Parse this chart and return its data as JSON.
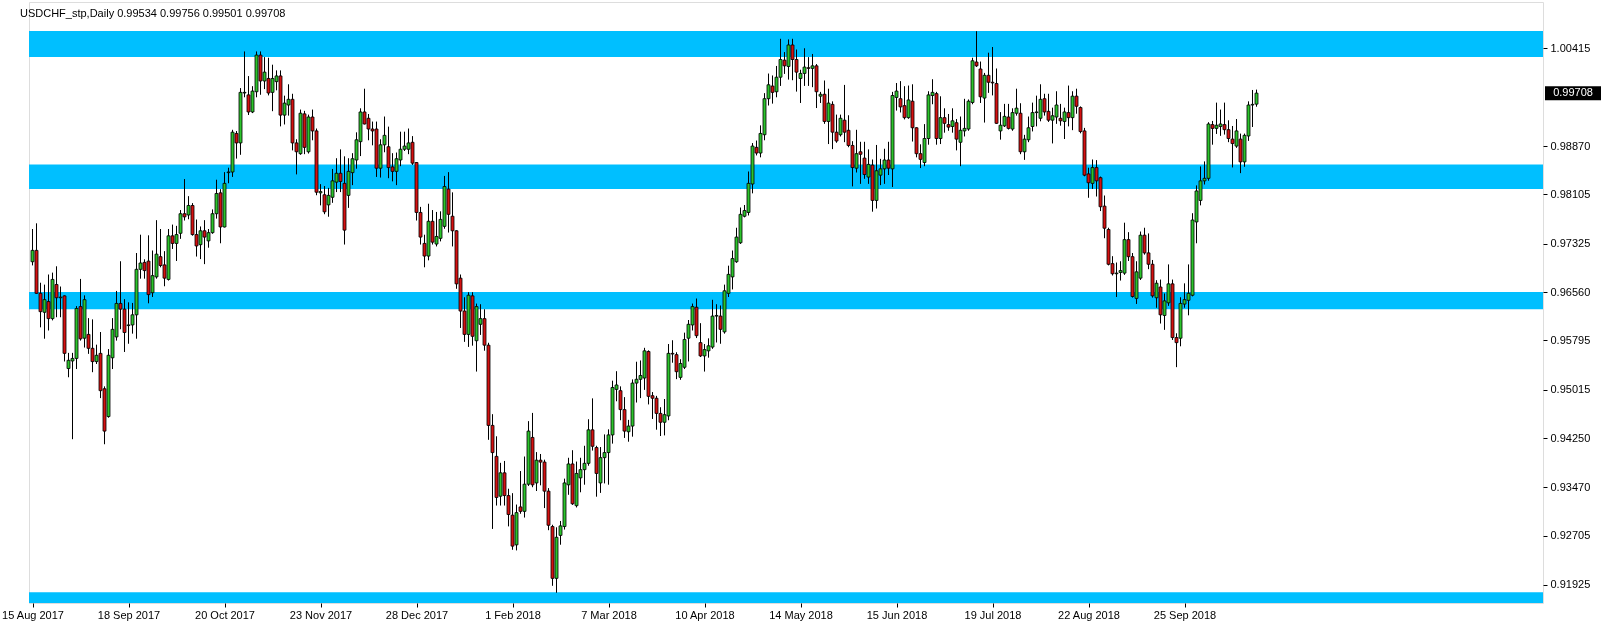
{
  "chart_data": {
    "type": "candlestick",
    "title": "USDCHF_stp,Daily 0.99534 0.99756 0.99501 0.99708",
    "categories": [
      "15 Aug 2017",
      null,
      null,
      null,
      null,
      null,
      null,
      null,
      null,
      null,
      null,
      null,
      null,
      null,
      null,
      null,
      null,
      null,
      null,
      null,
      null,
      null,
      null,
      null,
      "18 Sep 2017",
      null,
      null,
      null,
      null,
      null,
      null,
      null,
      null,
      null,
      null,
      null,
      null,
      null,
      null,
      null,
      null,
      null,
      null,
      null,
      null,
      null,
      null,
      null,
      "20 Oct 2017",
      null,
      null,
      null,
      null,
      null,
      null,
      null,
      null,
      null,
      null,
      null,
      null,
      null,
      null,
      null,
      null,
      null,
      null,
      null,
      null,
      null,
      null,
      null,
      "23 Nov 2017",
      null,
      null,
      null,
      null,
      null,
      null,
      null,
      null,
      null,
      null,
      null,
      null,
      null,
      null,
      null,
      null,
      null,
      null,
      null,
      null,
      null,
      null,
      null,
      "28 Dec 2017",
      null,
      null,
      null,
      null,
      null,
      null,
      null,
      null,
      null,
      null,
      null,
      null,
      null,
      null,
      null,
      null,
      null,
      null,
      null,
      null,
      null,
      null,
      null,
      "1 Feb 2018",
      null,
      null,
      null,
      null,
      null,
      null,
      null,
      null,
      null,
      null,
      null,
      null,
      null,
      null,
      null,
      null,
      null,
      null,
      null,
      null,
      null,
      null,
      null,
      "7 Mar 2018",
      null,
      null,
      null,
      null,
      null,
      null,
      null,
      null,
      null,
      null,
      null,
      null,
      null,
      null,
      null,
      null,
      null,
      null,
      null,
      null,
      null,
      null,
      null,
      "10 Apr 2018",
      null,
      null,
      null,
      null,
      null,
      null,
      null,
      null,
      null,
      null,
      null,
      null,
      null,
      null,
      null,
      null,
      null,
      null,
      null,
      null,
      null,
      null,
      null,
      "14 May 2018",
      null,
      null,
      null,
      null,
      null,
      null,
      null,
      null,
      null,
      null,
      null,
      null,
      null,
      null,
      null,
      null,
      null,
      null,
      null,
      null,
      null,
      null,
      null,
      "15 Jun 2018",
      null,
      null,
      null,
      null,
      null,
      null,
      null,
      null,
      null,
      null,
      null,
      null,
      null,
      null,
      null,
      null,
      null,
      null,
      null,
      null,
      null,
      null,
      null,
      "19 Jul 2018",
      null,
      null,
      null,
      null,
      null,
      null,
      null,
      null,
      null,
      null,
      null,
      null,
      null,
      null,
      null,
      null,
      null,
      null,
      null,
      null,
      null,
      null,
      null,
      "22 Aug 2018",
      null,
      null,
      null,
      null,
      null,
      null,
      null,
      null,
      null,
      null,
      null,
      null,
      null,
      null,
      null,
      null,
      null,
      null,
      null,
      null,
      null,
      null,
      null,
      "25 Sep 2018",
      null,
      null,
      null,
      null,
      null,
      null,
      null,
      null,
      null,
      null,
      null,
      null,
      null,
      null,
      null,
      null,
      null,
      null,
      null,
      null,
      null,
      null,
      null,
      null,
      null,
      null,
      null,
      null,
      null,
      null,
      null,
      null,
      null,
      null,
      null,
      null,
      null,
      null,
      null,
      null,
      null,
      null,
      null,
      null,
      null,
      null,
      null,
      null,
      null,
      null,
      null,
      null,
      null,
      null,
      null,
      null,
      null,
      null,
      null,
      null,
      null,
      null,
      null,
      null,
      null,
      null,
      null,
      null,
      null,
      null,
      null,
      null,
      null,
      null,
      null,
      null,
      null,
      null,
      null,
      null,
      null,
      null,
      null,
      null,
      null,
      null,
      null,
      null,
      null
    ],
    "ohlc": [
      [
        0.9704,
        0.9755,
        0.9699,
        0.9722
      ],
      [
        0.9722,
        0.9764,
        0.9654,
        0.9654
      ],
      [
        0.9654,
        0.967,
        0.9601,
        0.9625
      ],
      [
        0.9624,
        0.9667,
        0.9583,
        0.9644
      ],
      [
        0.9641,
        0.9683,
        0.9596,
        0.9614
      ],
      [
        0.9614,
        0.9686,
        0.9612,
        0.9676
      ],
      [
        0.9668,
        0.9696,
        0.9617,
        0.9647
      ],
      [
        0.9647,
        0.9664,
        0.9617,
        0.9648
      ],
      [
        0.965,
        0.965,
        0.9547,
        0.9559
      ],
      [
        0.9535,
        0.9559,
        0.9522,
        0.9548
      ],
      [
        0.9547,
        0.9559,
        0.9424,
        0.9551
      ],
      [
        0.9551,
        0.9633,
        0.9535,
        0.963
      ],
      [
        0.9633,
        0.9676,
        0.958,
        0.9582
      ],
      [
        0.9583,
        0.965,
        0.9569,
        0.9644
      ],
      [
        0.9589,
        0.9614,
        0.9559,
        0.9567
      ],
      [
        0.9567,
        0.9612,
        0.953,
        0.9546
      ],
      [
        0.9546,
        0.9572,
        0.9543,
        0.9556
      ],
      [
        0.9559,
        0.9592,
        0.9489,
        0.95
      ],
      [
        0.9503,
        0.9506,
        0.9416,
        0.9436
      ],
      [
        0.9459,
        0.9565,
        0.9458,
        0.9556
      ],
      [
        0.9552,
        0.9614,
        0.9535,
        0.9597
      ],
      [
        0.9585,
        0.9657,
        0.958,
        0.9638
      ],
      [
        0.9638,
        0.9704,
        0.9598,
        0.9629
      ],
      [
        0.9629,
        0.9644,
        0.9562,
        0.9592
      ],
      [
        0.9603,
        0.9639,
        0.9575,
        0.9604
      ],
      [
        0.9604,
        0.9638,
        0.9591,
        0.962
      ],
      [
        0.962,
        0.9717,
        0.9583,
        0.9692
      ],
      [
        0.9692,
        0.9746,
        0.9678,
        0.9702
      ],
      [
        0.9703,
        0.9707,
        0.9678,
        0.969
      ],
      [
        0.9705,
        0.9745,
        0.9639,
        0.9652
      ],
      [
        0.9655,
        0.9721,
        0.9649,
        0.9682
      ],
      [
        0.968,
        0.9769,
        0.9678,
        0.9716
      ],
      [
        0.9712,
        0.9755,
        0.9696,
        0.9698
      ],
      [
        0.9699,
        0.972,
        0.9666,
        0.9678
      ],
      [
        0.9676,
        0.9755,
        0.9675,
        0.9745
      ],
      [
        0.9745,
        0.9762,
        0.9725,
        0.9733
      ],
      [
        0.9733,
        0.976,
        0.9706,
        0.9747
      ],
      [
        0.9749,
        0.9785,
        0.9741,
        0.978
      ],
      [
        0.978,
        0.9834,
        0.977,
        0.9775
      ],
      [
        0.9778,
        0.9807,
        0.9772,
        0.9793
      ],
      [
        0.9793,
        0.9796,
        0.9746,
        0.9747
      ],
      [
        0.9747,
        0.977,
        0.9713,
        0.9729
      ],
      [
        0.9731,
        0.9759,
        0.9709,
        0.9753
      ],
      [
        0.9753,
        0.9769,
        0.9701,
        0.9743
      ],
      [
        0.9737,
        0.9755,
        0.9727,
        0.975
      ],
      [
        0.975,
        0.9786,
        0.9749,
        0.978
      ],
      [
        0.978,
        0.9833,
        0.9773,
        0.9812
      ],
      [
        0.9813,
        0.9818,
        0.9734,
        0.9759
      ],
      [
        0.9759,
        0.9845,
        0.9759,
        0.9828
      ],
      [
        0.9845,
        0.9852,
        0.9829,
        0.9846
      ],
      [
        0.9846,
        0.9912,
        0.9839,
        0.9909
      ],
      [
        0.9907,
        0.991,
        0.9868,
        0.9892
      ],
      [
        0.9892,
        0.9978,
        0.9874,
        0.9972
      ],
      [
        0.9971,
        1.0036,
        0.9965,
        0.9972
      ],
      [
        0.9968,
        0.9997,
        0.9937,
        0.9941
      ],
      [
        0.9941,
        0.9981,
        0.994,
        0.9974
      ],
      [
        0.9973,
        1.0036,
        0.9965,
        1.0031
      ],
      [
        1.0031,
        1.0036,
        0.9969,
        0.999
      ],
      [
        0.999,
        1.0027,
        0.9978,
        1.0004
      ],
      [
        0.9994,
        1.0026,
        0.9968,
        0.9971
      ],
      [
        0.9972,
        1.0015,
        0.9943,
        0.9994
      ],
      [
        0.9989,
        1.0006,
        0.9976,
        0.9998
      ],
      [
        0.9998,
        1.0006,
        0.9919,
        0.9936
      ],
      [
        0.9936,
        0.9966,
        0.9922,
        0.9955
      ],
      [
        0.9952,
        0.9984,
        0.9936,
        0.9961
      ],
      [
        0.9961,
        0.9969,
        0.9881,
        0.9892
      ],
      [
        0.9892,
        0.9897,
        0.9843,
        0.9878
      ],
      [
        0.9875,
        0.9944,
        0.9874,
        0.9939
      ],
      [
        0.9938,
        0.9942,
        0.9875,
        0.9885
      ],
      [
        0.9878,
        0.9936,
        0.9876,
        0.9933
      ],
      [
        0.9933,
        0.9944,
        0.9897,
        0.9911
      ],
      [
        0.9911,
        0.9914,
        0.981,
        0.9814
      ],
      [
        0.9813,
        0.9826,
        0.9794,
        0.9815
      ],
      [
        0.981,
        0.9823,
        0.978,
        0.9783
      ],
      [
        0.9794,
        0.982,
        0.9776,
        0.9809
      ],
      [
        0.9806,
        0.985,
        0.9798,
        0.9832
      ],
      [
        0.983,
        0.9867,
        0.9815,
        0.9844
      ],
      [
        0.9844,
        0.9881,
        0.9815,
        0.9831
      ],
      [
        0.9828,
        0.987,
        0.9732,
        0.9754
      ],
      [
        0.9809,
        0.9867,
        0.979,
        0.9847
      ],
      [
        0.9845,
        0.9875,
        0.9826,
        0.9867
      ],
      [
        0.9865,
        0.9908,
        0.9852,
        0.9897
      ],
      [
        0.9894,
        0.9946,
        0.9872,
        0.9941
      ],
      [
        0.9941,
        0.9977,
        0.9922,
        0.9922
      ],
      [
        0.9931,
        0.9937,
        0.9897,
        0.9914
      ],
      [
        0.9914,
        0.9925,
        0.9889,
        0.9911
      ],
      [
        0.9914,
        0.9925,
        0.9839,
        0.9852
      ],
      [
        0.9852,
        0.9897,
        0.9838,
        0.9889
      ],
      [
        0.9889,
        0.9933,
        0.9878,
        0.9904
      ],
      [
        0.9886,
        0.9917,
        0.9837,
        0.9853
      ],
      [
        0.9854,
        0.9875,
        0.9832,
        0.9847
      ],
      [
        0.9847,
        0.9876,
        0.9826,
        0.9867
      ],
      [
        0.9865,
        0.9909,
        0.9856,
        0.9882
      ],
      [
        0.9882,
        0.9909,
        0.988,
        0.9887
      ],
      [
        0.9882,
        0.9914,
        0.9875,
        0.9892
      ],
      [
        0.9893,
        0.9902,
        0.9858,
        0.986
      ],
      [
        0.9861,
        0.9861,
        0.977,
        0.9782
      ],
      [
        0.9782,
        0.979,
        0.9732,
        0.9743
      ],
      [
        0.9733,
        0.9746,
        0.9696,
        0.9713
      ],
      [
        0.9713,
        0.9795,
        0.9707,
        0.9768
      ],
      [
        0.9768,
        0.9785,
        0.9732,
        0.9735
      ],
      [
        0.9732,
        0.9782,
        0.9729,
        0.9744
      ],
      [
        0.9741,
        0.9783,
        0.9737,
        0.9771
      ],
      [
        0.976,
        0.9839,
        0.9757,
        0.9823
      ],
      [
        0.9819,
        0.9845,
        0.9751,
        0.9779
      ],
      [
        0.9776,
        0.9813,
        0.9729,
        0.9753
      ],
      [
        0.9753,
        0.9753,
        0.9662,
        0.9669
      ],
      [
        0.9678,
        0.9683,
        0.96,
        0.9626
      ],
      [
        0.9626,
        0.9647,
        0.9578,
        0.9589
      ],
      [
        0.9589,
        0.9655,
        0.957,
        0.9651
      ],
      [
        0.965,
        0.9655,
        0.9572,
        0.9586
      ],
      [
        0.9579,
        0.9637,
        0.9531,
        0.9633
      ],
      [
        0.9605,
        0.9636,
        0.9589,
        0.9614
      ],
      [
        0.9614,
        0.9628,
        0.9564,
        0.9572
      ],
      [
        0.9572,
        0.9575,
        0.9423,
        0.9445
      ],
      [
        0.9445,
        0.9462,
        0.9282,
        0.9402
      ],
      [
        0.9396,
        0.9427,
        0.9319,
        0.9331
      ],
      [
        0.9333,
        0.9385,
        0.9319,
        0.937
      ],
      [
        0.937,
        0.9388,
        0.9319,
        0.9334
      ],
      [
        0.9334,
        0.9344,
        0.9286,
        0.9304
      ],
      [
        0.9303,
        0.9337,
        0.9249,
        0.9254
      ],
      [
        0.9256,
        0.9319,
        0.9248,
        0.9307
      ],
      [
        0.9316,
        0.9372,
        0.9306,
        0.9309
      ],
      [
        0.9309,
        0.9395,
        0.93,
        0.9352
      ],
      [
        0.9352,
        0.9451,
        0.935,
        0.9436
      ],
      [
        0.9426,
        0.9464,
        0.9348,
        0.9351
      ],
      [
        0.9354,
        0.9402,
        0.9342,
        0.939
      ],
      [
        0.939,
        0.9399,
        0.9351,
        0.9387
      ],
      [
        0.9387,
        0.939,
        0.9315,
        0.9341
      ],
      [
        0.9341,
        0.9345,
        0.928,
        0.9287
      ],
      [
        0.9285,
        0.9287,
        0.9192,
        0.9203
      ],
      [
        0.9203,
        0.9283,
        0.9181,
        0.9268
      ],
      [
        0.9271,
        0.9293,
        0.9257,
        0.9286
      ],
      [
        0.9285,
        0.936,
        0.9281,
        0.9354
      ],
      [
        0.9351,
        0.9393,
        0.9336,
        0.9384
      ],
      [
        0.9384,
        0.9405,
        0.932,
        0.9321
      ],
      [
        0.9318,
        0.9387,
        0.9316,
        0.9369
      ],
      [
        0.9362,
        0.9393,
        0.934,
        0.9375
      ],
      [
        0.9375,
        0.9412,
        0.9352,
        0.9385
      ],
      [
        0.9385,
        0.9454,
        0.9382,
        0.9438
      ],
      [
        0.9438,
        0.9487,
        0.9406,
        0.9412
      ],
      [
        0.941,
        0.9412,
        0.9333,
        0.9369
      ],
      [
        0.9354,
        0.941,
        0.9339,
        0.9394
      ],
      [
        0.9394,
        0.943,
        0.9354,
        0.9402
      ],
      [
        0.9402,
        0.9438,
        0.9352,
        0.943
      ],
      [
        0.943,
        0.9515,
        0.9417,
        0.9505
      ],
      [
        0.9502,
        0.953,
        0.9484,
        0.9509
      ],
      [
        0.95,
        0.9506,
        0.9454,
        0.947
      ],
      [
        0.947,
        0.9489,
        0.9426,
        0.9436
      ],
      [
        0.9435,
        0.9453,
        0.942,
        0.9444
      ],
      [
        0.9444,
        0.9517,
        0.9428,
        0.9512
      ],
      [
        0.9512,
        0.9545,
        0.9482,
        0.9518
      ],
      [
        0.9518,
        0.9547,
        0.9489,
        0.9524
      ],
      [
        0.952,
        0.9567,
        0.9502,
        0.9563
      ],
      [
        0.9562,
        0.9563,
        0.9479,
        0.9491
      ],
      [
        0.9492,
        0.9497,
        0.9456,
        0.9488
      ],
      [
        0.9488,
        0.9491,
        0.9439,
        0.9464
      ],
      [
        0.9464,
        0.9473,
        0.9429,
        0.945
      ],
      [
        0.945,
        0.9486,
        0.943,
        0.9462
      ],
      [
        0.946,
        0.9573,
        0.9454,
        0.9559
      ],
      [
        0.9559,
        0.9579,
        0.9545,
        0.9558
      ],
      [
        0.9557,
        0.956,
        0.9519,
        0.953
      ],
      [
        0.9521,
        0.9549,
        0.9518,
        0.9543
      ],
      [
        0.9537,
        0.9591,
        0.9535,
        0.9581
      ],
      [
        0.9583,
        0.9611,
        0.9547,
        0.9605
      ],
      [
        0.9604,
        0.9637,
        0.9596,
        0.9633
      ],
      [
        0.9632,
        0.9645,
        0.9584,
        0.9587
      ],
      [
        0.9576,
        0.9606,
        0.9554,
        0.9555
      ],
      [
        0.9555,
        0.9573,
        0.9531,
        0.9565
      ],
      [
        0.9563,
        0.9582,
        0.9553,
        0.9571
      ],
      [
        0.9569,
        0.9643,
        0.9567,
        0.9618
      ],
      [
        0.9618,
        0.9636,
        0.9577,
        0.9619
      ],
      [
        0.9618,
        0.9634,
        0.9575,
        0.9597
      ],
      [
        0.9593,
        0.9667,
        0.9591,
        0.9658
      ],
      [
        0.9654,
        0.9697,
        0.9649,
        0.9684
      ],
      [
        0.968,
        0.9721,
        0.9661,
        0.9709
      ],
      [
        0.9704,
        0.9757,
        0.9703,
        0.9743
      ],
      [
        0.9734,
        0.9789,
        0.9733,
        0.9779
      ],
      [
        0.9776,
        0.9793,
        0.9775,
        0.9785
      ],
      [
        0.9782,
        0.9846,
        0.9778,
        0.9828
      ],
      [
        0.9827,
        0.9891,
        0.9813,
        0.9887
      ],
      [
        0.9885,
        0.9895,
        0.9873,
        0.9876
      ],
      [
        0.9876,
        0.9919,
        0.987,
        0.9907
      ],
      [
        0.9905,
        0.997,
        0.9897,
        0.9962
      ],
      [
        0.9962,
        1.0001,
        0.9952,
        0.9984
      ],
      [
        0.9982,
        0.9998,
        0.9955,
        0.9972
      ],
      [
        0.9973,
        1.0013,
        0.9965,
        0.9996
      ],
      [
        0.9996,
        1.0056,
        0.9983,
        1.0024
      ],
      [
        1.0023,
        1.0035,
        1.0002,
        1.0014
      ],
      [
        1.0013,
        1.0055,
        0.9993,
        1.0047
      ],
      [
        1.0047,
        1.0056,
        0.9992,
        1.0024
      ],
      [
        1.0024,
        1.0039,
        0.9974,
        1.0004
      ],
      [
        0.9994,
        1.0007,
        0.9956,
        1.0002
      ],
      [
        1.0002,
        1.0041,
        0.9983,
        1.0012
      ],
      [
        1.0011,
        1.0027,
        0.9983,
        1.001
      ],
      [
        1.001,
        1.0032,
        0.9981,
        1.0014
      ],
      [
        1.0014,
        1.0016,
        0.9948,
        0.9973
      ],
      [
        0.9966,
        0.9972,
        0.9956,
        0.9969
      ],
      [
        0.9969,
        0.999,
        0.9923,
        0.9926
      ],
      [
        0.9926,
        0.9977,
        0.9891,
        0.9955
      ],
      [
        0.9953,
        0.9957,
        0.9883,
        0.9909
      ],
      [
        0.9909,
        0.9936,
        0.9893,
        0.9895
      ],
      [
        0.9905,
        0.9936,
        0.9903,
        0.9931
      ],
      [
        0.9928,
        0.9983,
        0.9894,
        0.9909
      ],
      [
        0.9912,
        0.9935,
        0.9886,
        0.9888
      ],
      [
        0.9888,
        0.9894,
        0.9824,
        0.9853
      ],
      [
        0.9852,
        0.9912,
        0.9846,
        0.9875
      ],
      [
        0.9878,
        0.9893,
        0.9828,
        0.9874
      ],
      [
        0.9868,
        0.9893,
        0.9836,
        0.9842
      ],
      [
        0.9838,
        0.9881,
        0.9828,
        0.9858
      ],
      [
        0.9857,
        0.9865,
        0.9784,
        0.9801
      ],
      [
        0.9801,
        0.9888,
        0.9789,
        0.9848
      ],
      [
        0.9841,
        0.9866,
        0.9826,
        0.9851
      ],
      [
        0.9851,
        0.9882,
        0.9828,
        0.9865
      ],
      [
        0.9865,
        0.9893,
        0.9842,
        0.9852
      ],
      [
        0.9851,
        0.9972,
        0.9823,
        0.9967
      ],
      [
        0.9964,
        0.9986,
        0.9944,
        0.9974
      ],
      [
        0.9962,
        0.9989,
        0.9941,
        0.9949
      ],
      [
        0.9951,
        0.9981,
        0.993,
        0.9932
      ],
      [
        0.9932,
        0.9982,
        0.9931,
        0.996
      ],
      [
        0.9958,
        0.9984,
        0.9895,
        0.9916
      ],
      [
        0.9916,
        0.9916,
        0.987,
        0.9875
      ],
      [
        0.9875,
        0.9889,
        0.9853,
        0.9866
      ],
      [
        0.9861,
        0.9921,
        0.9856,
        0.9899
      ],
      [
        0.9899,
        0.9973,
        0.989,
        0.9968
      ],
      [
        0.9967,
        0.9992,
        0.9954,
        0.9972
      ],
      [
        0.997,
        0.9972,
        0.989,
        0.9899
      ],
      [
        0.9899,
        0.9965,
        0.9891,
        0.9932
      ],
      [
        0.9932,
        0.9946,
        0.9909,
        0.9923
      ],
      [
        0.9921,
        0.9937,
        0.9912,
        0.9917
      ],
      [
        0.9918,
        0.9946,
        0.9909,
        0.9927
      ],
      [
        0.9924,
        0.9929,
        0.9881,
        0.9898
      ],
      [
        0.9893,
        0.9933,
        0.9856,
        0.9912
      ],
      [
        0.9911,
        0.9961,
        0.9903,
        0.9915
      ],
      [
        0.9914,
        0.996,
        0.9912,
        0.9958
      ],
      [
        0.9956,
        1.0026,
        0.9954,
        1.0022
      ],
      [
        1.002,
        1.0068,
        1.0013,
        1.0014
      ],
      [
        1.0009,
        1.002,
        0.9956,
        0.9965
      ],
      [
        0.9963,
        1.0002,
        0.9925,
        0.9999
      ],
      [
        0.9999,
        1.0034,
        0.9972,
        0.9988
      ],
      [
        0.9988,
        1.0043,
        0.9968,
        0.9987
      ],
      [
        0.9986,
        1.0009,
        0.9923,
        0.9923
      ],
      [
        0.9911,
        0.994,
        0.9898,
        0.992
      ],
      [
        0.9919,
        0.9953,
        0.9918,
        0.9934
      ],
      [
        0.9933,
        0.9953,
        0.9914,
        0.9915
      ],
      [
        0.9914,
        0.9946,
        0.9912,
        0.994
      ],
      [
        0.9939,
        0.9977,
        0.9936,
        0.9947
      ],
      [
        0.9939,
        0.9954,
        0.9875,
        0.9878
      ],
      [
        0.9878,
        0.9904,
        0.9866,
        0.9898
      ],
      [
        0.9897,
        0.9933,
        0.9894,
        0.9916
      ],
      [
        0.9918,
        0.9955,
        0.9911,
        0.994
      ],
      [
        0.994,
        0.9966,
        0.9919,
        0.9941
      ],
      [
        0.9931,
        0.9984,
        0.9927,
        0.9961
      ],
      [
        0.9962,
        0.9969,
        0.9936,
        0.9941
      ],
      [
        0.9942,
        0.9969,
        0.9926,
        0.9928
      ],
      [
        0.9928,
        0.9947,
        0.9892,
        0.9935
      ],
      [
        0.9933,
        0.9973,
        0.9923,
        0.9952
      ],
      [
        0.9931,
        0.9953,
        0.992,
        0.9927
      ],
      [
        0.9926,
        0.9947,
        0.9899,
        0.9941
      ],
      [
        0.994,
        0.9982,
        0.9919,
        0.9932
      ],
      [
        0.9932,
        0.9973,
        0.9913,
        0.9966
      ],
      [
        0.9966,
        0.9977,
        0.9939,
        0.995
      ],
      [
        0.9948,
        0.9949,
        0.9908,
        0.991
      ],
      [
        0.9911,
        0.9915,
        0.984,
        0.9841
      ],
      [
        0.9843,
        0.9852,
        0.9806,
        0.9829
      ],
      [
        0.9828,
        0.9865,
        0.982,
        0.9853
      ],
      [
        0.9853,
        0.9864,
        0.9808,
        0.9832
      ],
      [
        0.9837,
        0.9838,
        0.9785,
        0.9791
      ],
      [
        0.9792,
        0.9808,
        0.9742,
        0.9757
      ],
      [
        0.9755,
        0.9757,
        0.9699,
        0.97
      ],
      [
        0.9701,
        0.9712,
        0.9683,
        0.9685
      ],
      [
        0.9685,
        0.9702,
        0.9649,
        0.9686
      ],
      [
        0.9687,
        0.9704,
        0.9675,
        0.969
      ],
      [
        0.9686,
        0.9765,
        0.9684,
        0.9739
      ],
      [
        0.9739,
        0.975,
        0.9706,
        0.9712
      ],
      [
        0.9712,
        0.9717,
        0.9648,
        0.9649
      ],
      [
        0.9646,
        0.9704,
        0.9638,
        0.9688
      ],
      [
        0.9678,
        0.9751,
        0.9676,
        0.9746
      ],
      [
        0.9746,
        0.9757,
        0.9716,
        0.9718
      ],
      [
        0.9718,
        0.9748,
        0.9693,
        0.97
      ],
      [
        0.97,
        0.9706,
        0.9648,
        0.965
      ],
      [
        0.9647,
        0.9674,
        0.9632,
        0.967
      ],
      [
        0.9664,
        0.9675,
        0.9607,
        0.962
      ],
      [
        0.9619,
        0.9653,
        0.9597,
        0.9642
      ],
      [
        0.9639,
        0.9699,
        0.9635,
        0.9669
      ],
      [
        0.9669,
        0.9675,
        0.9581,
        0.9584
      ],
      [
        0.9584,
        0.959,
        0.9538,
        0.9576
      ],
      [
        0.9583,
        0.9647,
        0.9571,
        0.9638
      ],
      [
        0.9637,
        0.9669,
        0.9632,
        0.9644
      ],
      [
        0.9643,
        0.9699,
        0.962,
        0.9654
      ],
      [
        0.9651,
        0.978,
        0.965,
        0.977
      ],
      [
        0.9767,
        0.9824,
        0.9734,
        0.9816
      ],
      [
        0.9801,
        0.9854,
        0.9794,
        0.9832
      ],
      [
        0.9832,
        0.9862,
        0.9827,
        0.9836
      ],
      [
        0.9836,
        0.9924,
        0.9833,
        0.9922
      ],
      [
        0.9921,
        0.9926,
        0.989,
        0.9915
      ],
      [
        0.9915,
        0.9955,
        0.9907,
        0.992
      ],
      [
        0.9918,
        0.9944,
        0.9904,
        0.9922
      ],
      [
        0.9921,
        0.9955,
        0.9906,
        0.9913
      ],
      [
        0.9913,
        0.9927,
        0.9894,
        0.9899
      ],
      [
        0.9898,
        0.9918,
        0.9854,
        0.9891
      ],
      [
        0.9887,
        0.9929,
        0.9885,
        0.9911
      ],
      [
        0.9898,
        0.9906,
        0.9845,
        0.9862
      ],
      [
        0.9862,
        0.9906,
        0.9855,
        0.9904
      ],
      [
        0.9903,
        0.9957,
        0.9896,
        0.9952
      ],
      [
        0.9952,
        0.9975,
        0.9918,
        0.9953
      ],
      [
        0.99534,
        0.99756,
        0.99501,
        0.99708
      ],
      null,
      null,
      null,
      null,
      null,
      null,
      null,
      null,
      null,
      null,
      null,
      null,
      null,
      null,
      null,
      null,
      null,
      null,
      null,
      null,
      null,
      null,
      null,
      null,
      null,
      null,
      null,
      null,
      null,
      null,
      null,
      null,
      null,
      null,
      null,
      null,
      null,
      null,
      null,
      null,
      null,
      null,
      null,
      null,
      null,
      null,
      null,
      null,
      null,
      null,
      null,
      null,
      null,
      null,
      null,
      null,
      null,
      null,
      null,
      null,
      null,
      null,
      null,
      null,
      null,
      null,
      null,
      null,
      null,
      null,
      null
    ],
    "colors": [
      "#2cc42c",
      "#d41111",
      "#d41111",
      "#2cc42c",
      "#d41111",
      "#2cc42c",
      "#d41111",
      "#2cc42c",
      "#d41111",
      "#2cc42c",
      "#2cc42c",
      "#2cc42c",
      "#d41111",
      "#2cc42c",
      "#d41111",
      "#d41111",
      "#2cc42c",
      "#d41111",
      "#d41111",
      "#2cc42c",
      "#2cc42c",
      "#2cc42c",
      "#d41111",
      "#d41111",
      "#2cc42c",
      "#2cc42c",
      "#2cc42c",
      "#2cc42c",
      "#d41111",
      "#d41111",
      "#2cc42c",
      "#2cc42c",
      "#d41111",
      "#d41111",
      "#2cc42c",
      "#d41111",
      "#2cc42c",
      "#2cc42c",
      "#d41111",
      "#2cc42c",
      "#d41111",
      "#d41111",
      "#2cc42c",
      "#d41111",
      "#2cc42c",
      "#2cc42c",
      "#2cc42c",
      "#d41111",
      "#2cc42c",
      "#2cc42c",
      "#2cc42c",
      "#d41111",
      "#2cc42c",
      "#2cc42c",
      "#d41111",
      "#2cc42c",
      "#2cc42c",
      "#d41111",
      "#2cc42c",
      "#d41111",
      "#2cc42c",
      "#2cc42c",
      "#d41111",
      "#2cc42c",
      "#2cc42c",
      "#d41111",
      "#d41111",
      "#2cc42c",
      "#d41111",
      "#2cc42c",
      "#d41111",
      "#d41111",
      "#2cc42c",
      "#d41111",
      "#2cc42c",
      "#2cc42c",
      "#2cc42c",
      "#d41111",
      "#d41111",
      "#2cc42c",
      "#2cc42c",
      "#2cc42c",
      "#2cc42c",
      "#d41111",
      "#d41111",
      "#d41111",
      "#d41111",
      "#2cc42c",
      "#2cc42c",
      "#d41111",
      "#d41111",
      "#2cc42c",
      "#2cc42c",
      "#2cc42c",
      "#2cc42c",
      "#d41111",
      "#d41111",
      "#d41111",
      "#d41111",
      "#2cc42c",
      "#d41111",
      "#2cc42c",
      "#2cc42c",
      "#2cc42c",
      "#d41111",
      "#d41111",
      "#d41111",
      "#d41111",
      "#d41111",
      "#2cc42c",
      "#d41111",
      "#2cc42c",
      "#2cc42c",
      "#d41111",
      "#d41111",
      "#d41111",
      "#d41111",
      "#2cc42c",
      "#d41111",
      "#d41111",
      "#d41111",
      "#2cc42c",
      "#d41111",
      "#2cc42c",
      "#2cc42c",
      "#d41111",
      "#2cc42c",
      "#d41111",
      "#d41111",
      "#d41111",
      "#d41111",
      "#2cc42c",
      "#2cc42c",
      "#2cc42c",
      "#2cc42c",
      "#d41111",
      "#2cc42c",
      "#2cc42c",
      "#2cc42c",
      "#2cc42c",
      "#d41111",
      "#d41111",
      "#2cc42c",
      "#2cc42c",
      "#2cc42c",
      "#2cc42c",
      "#2cc42c",
      "#d41111",
      "#d41111",
      "#2cc42c",
      "#2cc42c",
      "#2cc42c",
      "#2cc42c",
      "#2cc42c",
      "#d41111",
      "#d41111",
      "#d41111",
      "#d41111",
      "#2cc42c",
      "#2cc42c",
      "#d41111",
      "#d41111",
      "#2cc42c",
      "#2cc42c",
      "#2cc42c",
      "#2cc42c",
      "#d41111",
      "#d41111",
      "#2cc42c",
      "#2cc42c",
      "#2cc42c",
      "#2cc42c",
      "#d41111",
      "#2cc42c",
      "#2cc42c",
      "#2cc42c",
      "#2cc42c",
      "#2cc42c",
      "#2cc42c",
      "#2cc42c",
      "#2cc42c",
      "#d41111",
      "#2cc42c",
      "#2cc42c",
      "#2cc42c",
      "#d41111",
      "#2cc42c",
      "#2cc42c",
      "#d41111",
      "#2cc42c",
      "#d41111",
      "#d41111",
      "#2cc42c",
      "#2cc42c",
      "#d41111",
      "#2cc42c",
      "#d41111",
      "#2cc42c",
      "#d41111",
      "#2cc42c",
      "#d41111",
      "#d41111",
      "#2cc42c",
      "#d41111",
      "#d41111",
      "#d41111",
      "#2cc42c",
      "#d41111",
      "#d41111",
      "#2cc42c",
      "#d41111",
      "#2cc42c",
      "#2cc42c",
      "#2cc42c",
      "#d41111",
      "#2cc42c",
      "#2cc42c",
      "#d41111",
      "#d41111",
      "#2cc42c",
      "#d41111",
      "#d41111",
      "#d41111",
      "#2cc42c",
      "#2cc42c",
      "#2cc42c",
      "#d41111",
      "#2cc42c",
      "#d41111",
      "#d41111",
      "#2cc42c",
      "#d41111",
      "#2cc42c",
      "#2cc42c",
      "#2cc42c",
      "#2cc42c",
      "#d41111",
      "#d41111",
      "#2cc42c",
      "#d41111",
      "#d41111",
      "#d41111",
      "#2cc42c",
      "#2cc42c",
      "#d41111",
      "#2cc42c",
      "#2cc42c",
      "#d41111",
      "#2cc42c",
      "#2cc42c",
      "#2cc42c",
      "#2cc42c",
      "#2cc42c",
      "#d41111",
      "#d41111",
      "#2cc42c",
      "#2cc42c",
      "#d41111",
      "#2cc42c",
      "#d41111",
      "#2cc42c",
      "#d41111",
      "#d41111",
      "#d41111",
      "#d41111",
      "#2cc42c",
      "#d41111",
      "#d41111",
      "#d41111",
      "#d41111",
      "#d41111",
      "#2cc42c",
      "#2cc42c",
      "#2cc42c",
      "#d41111",
      "#d41111",
      "#2cc42c",
      "#2cc42c",
      "#d41111",
      "#d41111",
      "#d41111",
      "#2cc42c",
      "#d41111",
      "#2cc42c",
      "#2cc42c",
      "#d41111",
      "#d41111",
      "#2cc42c",
      "#2cc42c",
      "#2cc42c",
      "#2cc42c",
      "#2cc42c",
      "#2cc42c",
      "#2cc42c",
      "#2cc42c",
      "#d41111",
      "#2cc42c",
      "#2cc42c",
      "#d41111",
      "#d41111",
      "#d41111",
      "#2cc42c",
      "#d41111",
      "#2cc42c",
      "#2cc42c",
      "#2cc42c",
      "#2cc42c",
      null,
      null,
      null,
      null,
      null,
      null,
      null,
      null,
      null,
      null,
      null,
      null,
      null,
      null,
      null,
      null,
      null,
      null,
      null,
      null,
      null,
      null,
      null,
      null,
      null,
      null,
      null,
      null,
      null,
      null,
      null,
      null,
      null,
      null,
      null,
      null,
      null,
      null,
      null,
      null,
      null,
      null,
      null,
      null,
      null,
      null,
      null,
      null,
      null,
      null,
      null,
      null,
      null,
      null,
      null,
      null,
      null,
      null,
      null,
      null,
      null,
      null,
      null,
      null,
      null,
      null,
      null,
      null,
      null,
      null,
      null
    ],
    "ylim": [
      0.9164,
      1.0115
    ],
    "yticks": [
      1.00415,
      {
        "value": 0.9887,
        "label": "0.98870"
      },
      0.98105,
      0.97325,
      {
        "value": 0.9656,
        "label": "0.96560"
      },
      0.95795,
      0.95015,
      {
        "value": 0.9425,
        "label": "0.94250"
      },
      {
        "value": 0.9347,
        "label": "0.93470"
      },
      0.92705,
      0.91925
    ],
    "bands": [
      {
        "axis": "y",
        "from": 1.0028,
        "to": 1.0069,
        "color": "#00bfff"
      },
      {
        "axis": "y",
        "from": 0.9819,
        "to": 0.9858,
        "color": "#00bfff"
      },
      {
        "axis": "y",
        "from": 0.9629,
        "to": 0.9656,
        "color": "#00bfff"
      },
      {
        "axis": "y",
        "from": 0.9164,
        "to": 0.9181,
        "color": "#00bfff"
      }
    ],
    "annotations": [
      "0.99708"
    ],
    "grid": false
  }
}
